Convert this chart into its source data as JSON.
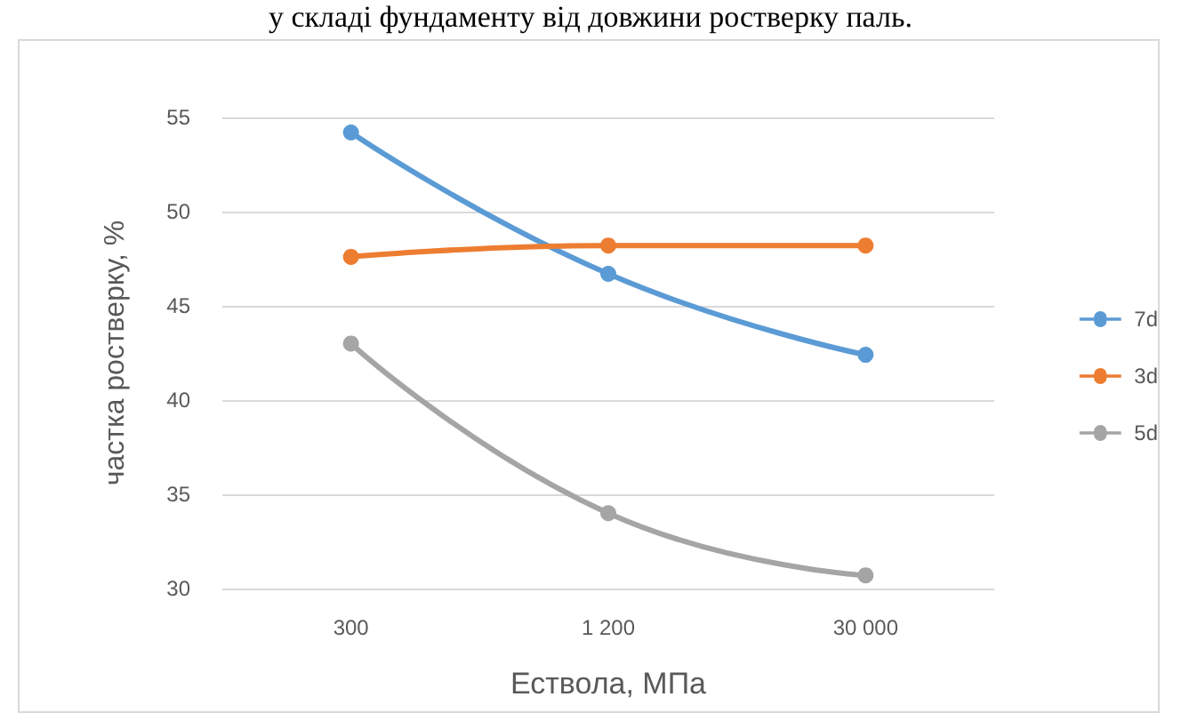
{
  "chart_data": {
    "type": "line",
    "xlabel": "Ествола, МПа",
    "ylabel": "частка ростверку, %",
    "annotations": [
      "у складі фундаменту від довжини ростверку паль."
    ],
    "categories": [
      "300",
      "1 200",
      "30 000"
    ],
    "series": [
      {
        "name": "7d",
        "color": "#5b9bd5",
        "values": [
          54.2,
          46.7,
          42.4
        ]
      },
      {
        "name": "3d",
        "color": "#ed7d31",
        "values": [
          47.6,
          48.2,
          48.2
        ]
      },
      {
        "name": "5d",
        "color": "#a5a5a5",
        "values": [
          43.0,
          34.0,
          30.7
        ]
      }
    ],
    "ylim": [
      30,
      55
    ],
    "yticks": [
      30,
      35,
      40,
      45,
      50,
      55
    ],
    "grid": "y",
    "legend": "right",
    "marker": "circle",
    "line_style": "solid"
  }
}
